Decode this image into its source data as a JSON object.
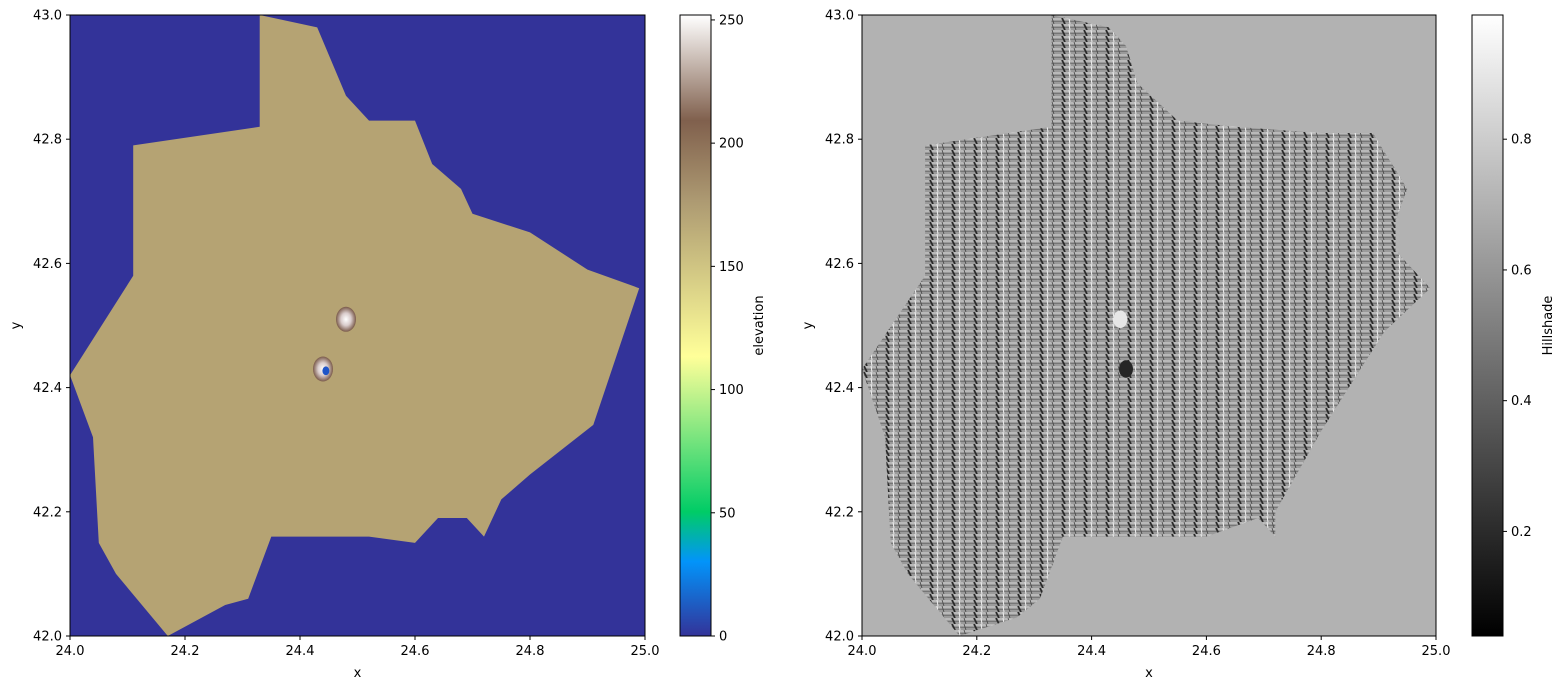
{
  "chart_data": [
    {
      "type": "heatmap",
      "title": "",
      "xlabel": "x",
      "ylabel": "y",
      "xlim": [
        24.0,
        25.0
      ],
      "ylim": [
        42.0,
        43.0
      ],
      "x_ticks": [
        "24.0",
        "24.2",
        "24.4",
        "24.6",
        "24.8",
        "25.0"
      ],
      "x_tick_values": [
        24.0,
        24.2,
        24.4,
        24.6,
        24.8,
        25.0
      ],
      "y_ticks": [
        "42.0",
        "42.2",
        "42.4",
        "42.6",
        "42.8",
        "43.0"
      ],
      "y_tick_values": [
        42.0,
        42.2,
        42.4,
        42.6,
        42.8,
        43.0
      ],
      "background_value": 0,
      "colormap": "terrain",
      "colorbar": {
        "label": "elevation",
        "range": [
          0,
          252
        ],
        "ticks": [
          "0",
          "50",
          "100",
          "150",
          "200",
          "250"
        ],
        "tick_values": [
          0,
          50,
          100,
          150,
          200,
          250
        ]
      },
      "data_outline_lonlat": [
        [
          24.33,
          43.0
        ],
        [
          24.43,
          42.98
        ],
        [
          24.48,
          42.87
        ],
        [
          24.52,
          42.83
        ],
        [
          24.6,
          42.83
        ],
        [
          24.63,
          42.76
        ],
        [
          24.68,
          42.72
        ],
        [
          24.7,
          42.68
        ],
        [
          24.8,
          42.65
        ],
        [
          24.9,
          42.59
        ],
        [
          24.99,
          42.56
        ],
        [
          24.91,
          42.34
        ],
        [
          24.8,
          42.26
        ],
        [
          24.75,
          42.22
        ],
        [
          24.72,
          42.16
        ],
        [
          24.69,
          42.19
        ],
        [
          24.64,
          42.19
        ],
        [
          24.6,
          42.15
        ],
        [
          24.52,
          42.16
        ],
        [
          24.43,
          42.16
        ],
        [
          24.35,
          42.16
        ],
        [
          24.31,
          42.06
        ],
        [
          24.27,
          42.05
        ],
        [
          24.17,
          42.0
        ],
        [
          24.08,
          42.1
        ],
        [
          24.05,
          42.15
        ],
        [
          24.04,
          42.32
        ],
        [
          24.0,
          42.42
        ],
        [
          24.11,
          42.58
        ],
        [
          24.11,
          42.79
        ],
        [
          24.33,
          42.82
        ],
        [
          24.33,
          43.0
        ]
      ],
      "features": [
        {
          "type": "peak",
          "x": 24.48,
          "y": 42.51,
          "value": 230
        },
        {
          "type": "peak",
          "x": 24.44,
          "y": 42.43,
          "value": 240
        },
        {
          "type": "low-point",
          "x": 24.445,
          "y": 42.427,
          "value": 10
        }
      ]
    },
    {
      "type": "heatmap",
      "title": "",
      "xlabel": "x",
      "ylabel": "y",
      "xlim": [
        24.0,
        25.0
      ],
      "ylim": [
        42.0,
        43.0
      ],
      "x_ticks": [
        "24.0",
        "24.2",
        "24.4",
        "24.6",
        "24.8",
        "25.0"
      ],
      "x_tick_values": [
        24.0,
        24.2,
        24.4,
        24.6,
        24.8,
        25.0
      ],
      "y_ticks": [
        "42.0",
        "42.2",
        "42.4",
        "42.6",
        "42.8",
        "43.0"
      ],
      "y_tick_values": [
        42.0,
        42.2,
        42.4,
        42.6,
        42.8,
        43.0
      ],
      "background_value": 0.7,
      "colormap": "gray",
      "colorbar": {
        "label": "Hillshade",
        "range": [
          0.04,
          0.99
        ],
        "ticks": [
          "0.2",
          "0.4",
          "0.6",
          "0.8"
        ],
        "tick_values": [
          0.2,
          0.4,
          0.6,
          0.8
        ]
      },
      "data_outline_lonlat": [
        [
          24.33,
          43.0
        ],
        [
          24.43,
          42.98
        ],
        [
          24.46,
          42.95
        ],
        [
          24.48,
          42.89
        ],
        [
          24.55,
          42.83
        ],
        [
          24.65,
          42.82
        ],
        [
          24.8,
          42.81
        ],
        [
          24.89,
          42.81
        ],
        [
          24.91,
          42.78
        ],
        [
          24.95,
          42.72
        ],
        [
          24.93,
          42.67
        ],
        [
          24.93,
          42.62
        ],
        [
          24.99,
          42.56
        ],
        [
          24.91,
          42.49
        ],
        [
          24.8,
          42.33
        ],
        [
          24.72,
          42.2
        ],
        [
          24.72,
          42.16
        ],
        [
          24.69,
          42.19
        ],
        [
          24.6,
          42.16
        ],
        [
          24.52,
          42.16
        ],
        [
          24.43,
          42.16
        ],
        [
          24.35,
          42.16
        ],
        [
          24.31,
          42.06
        ],
        [
          24.27,
          42.03
        ],
        [
          24.17,
          42.0
        ],
        [
          24.08,
          42.1
        ],
        [
          24.05,
          42.15
        ],
        [
          24.04,
          42.32
        ],
        [
          24.0,
          42.43
        ],
        [
          24.11,
          42.58
        ],
        [
          24.11,
          42.79
        ],
        [
          24.33,
          42.82
        ],
        [
          24.33,
          43.0
        ]
      ],
      "features": [
        {
          "type": "shade",
          "x": 24.46,
          "y": 42.43,
          "value": 0.15
        },
        {
          "type": "shade",
          "x": 24.45,
          "y": 42.51,
          "value": 0.9
        }
      ]
    }
  ]
}
